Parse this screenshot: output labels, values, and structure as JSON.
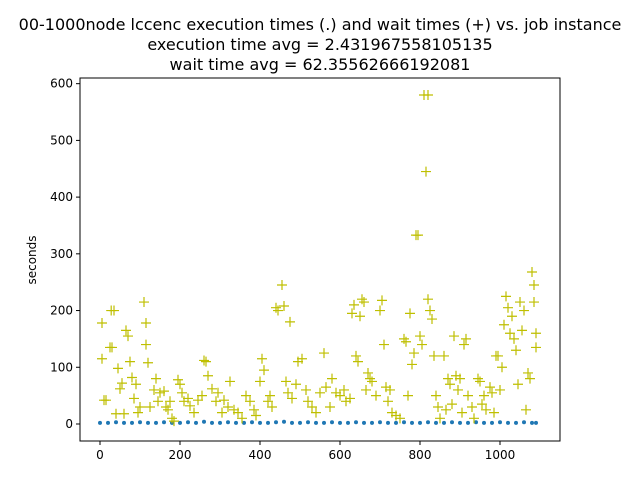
{
  "chart_data": {
    "type": "scatter",
    "title_lines": [
      "00-1000node lccenc execution times (.) and wait times (+) vs. job instance",
      "execution time avg = 2.431967558105135",
      "wait time avg = 62.35562666192081"
    ],
    "xlabel": "",
    "ylabel": "seconds",
    "xlim": [
      -50,
      1150
    ],
    "ylim": [
      -30,
      610
    ],
    "xticks": [
      0,
      200,
      400,
      600,
      800,
      1000
    ],
    "yticks": [
      0,
      100,
      200,
      300,
      400,
      500,
      600
    ],
    "grid": false,
    "series": [
      {
        "marker": "dot",
        "color": "#1f77b4",
        "points": [
          [
            0,
            2
          ],
          [
            20,
            2
          ],
          [
            40,
            3
          ],
          [
            60,
            2
          ],
          [
            80,
            2
          ],
          [
            100,
            3
          ],
          [
            120,
            2
          ],
          [
            140,
            2
          ],
          [
            160,
            3
          ],
          [
            180,
            2
          ],
          [
            200,
            2
          ],
          [
            220,
            3
          ],
          [
            240,
            2
          ],
          [
            260,
            4
          ],
          [
            280,
            2
          ],
          [
            300,
            2
          ],
          [
            320,
            3
          ],
          [
            340,
            2
          ],
          [
            360,
            2
          ],
          [
            380,
            3
          ],
          [
            400,
            2
          ],
          [
            420,
            2
          ],
          [
            440,
            3
          ],
          [
            460,
            4
          ],
          [
            480,
            2
          ],
          [
            500,
            2
          ],
          [
            520,
            3
          ],
          [
            540,
            2
          ],
          [
            560,
            2
          ],
          [
            580,
            3
          ],
          [
            600,
            2
          ],
          [
            620,
            2
          ],
          [
            640,
            3
          ],
          [
            660,
            2
          ],
          [
            680,
            2
          ],
          [
            700,
            3
          ],
          [
            720,
            2
          ],
          [
            740,
            2
          ],
          [
            760,
            3
          ],
          [
            780,
            2
          ],
          [
            800,
            2
          ],
          [
            820,
            3
          ],
          [
            840,
            2
          ],
          [
            860,
            2
          ],
          [
            880,
            3
          ],
          [
            900,
            2
          ],
          [
            920,
            2
          ],
          [
            940,
            3
          ],
          [
            960,
            2
          ],
          [
            980,
            2
          ],
          [
            1000,
            3
          ],
          [
            1020,
            2
          ],
          [
            1040,
            2
          ],
          [
            1060,
            3
          ],
          [
            1080,
            2
          ],
          [
            1090,
            2
          ]
        ]
      },
      {
        "marker": "plus",
        "color": "#bfbf00",
        "points": [
          [
            5,
            178
          ],
          [
            5,
            115
          ],
          [
            10,
            42
          ],
          [
            15,
            42
          ],
          [
            25,
            135
          ],
          [
            28,
            200
          ],
          [
            35,
            200
          ],
          [
            30,
            135
          ],
          [
            40,
            18
          ],
          [
            45,
            98
          ],
          [
            50,
            62
          ],
          [
            55,
            72
          ],
          [
            60,
            18
          ],
          [
            65,
            165
          ],
          [
            70,
            155
          ],
          [
            75,
            110
          ],
          [
            80,
            82
          ],
          [
            85,
            45
          ],
          [
            90,
            70
          ],
          [
            95,
            20
          ],
          [
            100,
            30
          ],
          [
            110,
            215
          ],
          [
            115,
            178
          ],
          [
            115,
            140
          ],
          [
            120,
            108
          ],
          [
            125,
            30
          ],
          [
            135,
            60
          ],
          [
            140,
            80
          ],
          [
            145,
            40
          ],
          [
            150,
            55
          ],
          [
            160,
            58
          ],
          [
            165,
            30
          ],
          [
            170,
            25
          ],
          [
            175,
            40
          ],
          [
            180,
            10
          ],
          [
            185,
            5
          ],
          [
            195,
            78
          ],
          [
            200,
            70
          ],
          [
            205,
            55
          ],
          [
            210,
            40
          ],
          [
            220,
            45
          ],
          [
            225,
            32
          ],
          [
            235,
            20
          ],
          [
            245,
            42
          ],
          [
            255,
            50
          ],
          [
            260,
            112
          ],
          [
            265,
            110
          ],
          [
            270,
            85
          ],
          [
            280,
            62
          ],
          [
            290,
            40
          ],
          [
            295,
            55
          ],
          [
            305,
            20
          ],
          [
            310,
            42
          ],
          [
            320,
            30
          ],
          [
            325,
            75
          ],
          [
            335,
            25
          ],
          [
            345,
            20
          ],
          [
            355,
            10
          ],
          [
            365,
            50
          ],
          [
            375,
            40
          ],
          [
            385,
            25
          ],
          [
            390,
            15
          ],
          [
            400,
            75
          ],
          [
            405,
            115
          ],
          [
            410,
            95
          ],
          [
            420,
            40
          ],
          [
            425,
            50
          ],
          [
            430,
            30
          ],
          [
            440,
            205
          ],
          [
            445,
            200
          ],
          [
            455,
            245
          ],
          [
            460,
            208
          ],
          [
            465,
            75
          ],
          [
            470,
            55
          ],
          [
            475,
            180
          ],
          [
            480,
            45
          ],
          [
            490,
            70
          ],
          [
            495,
            110
          ],
          [
            505,
            115
          ],
          [
            515,
            60
          ],
          [
            520,
            40
          ],
          [
            530,
            30
          ],
          [
            540,
            20
          ],
          [
            550,
            55
          ],
          [
            560,
            125
          ],
          [
            565,
            65
          ],
          [
            575,
            30
          ],
          [
            580,
            80
          ],
          [
            590,
            55
          ],
          [
            600,
            50
          ],
          [
            610,
            60
          ],
          [
            615,
            40
          ],
          [
            625,
            45
          ],
          [
            630,
            195
          ],
          [
            635,
            210
          ],
          [
            640,
            120
          ],
          [
            645,
            110
          ],
          [
            650,
            190
          ],
          [
            655,
            220
          ],
          [
            660,
            215
          ],
          [
            665,
            60
          ],
          [
            670,
            90
          ],
          [
            675,
            80
          ],
          [
            680,
            75
          ],
          [
            690,
            50
          ],
          [
            700,
            200
          ],
          [
            705,
            218
          ],
          [
            710,
            140
          ],
          [
            715,
            65
          ],
          [
            720,
            40
          ],
          [
            725,
            60
          ],
          [
            730,
            20
          ],
          [
            740,
            15
          ],
          [
            750,
            10
          ],
          [
            760,
            150
          ],
          [
            765,
            145
          ],
          [
            770,
            50
          ],
          [
            775,
            195
          ],
          [
            780,
            105
          ],
          [
            785,
            125
          ],
          [
            790,
            333
          ],
          [
            795,
            333
          ],
          [
            800,
            155
          ],
          [
            805,
            140
          ],
          [
            810,
            580
          ],
          [
            815,
            445
          ],
          [
            820,
            580
          ],
          [
            820,
            220
          ],
          [
            825,
            200
          ],
          [
            830,
            185
          ],
          [
            835,
            120
          ],
          [
            840,
            50
          ],
          [
            845,
            30
          ],
          [
            850,
            10
          ],
          [
            860,
            120
          ],
          [
            865,
            25
          ],
          [
            870,
            80
          ],
          [
            875,
            70
          ],
          [
            880,
            35
          ],
          [
            885,
            155
          ],
          [
            890,
            85
          ],
          [
            895,
            60
          ],
          [
            900,
            80
          ],
          [
            905,
            20
          ],
          [
            910,
            140
          ],
          [
            915,
            150
          ],
          [
            920,
            50
          ],
          [
            930,
            30
          ],
          [
            935,
            10
          ],
          [
            945,
            80
          ],
          [
            950,
            75
          ],
          [
            955,
            35
          ],
          [
            960,
            50
          ],
          [
            965,
            25
          ],
          [
            975,
            65
          ],
          [
            980,
            55
          ],
          [
            985,
            20
          ],
          [
            990,
            120
          ],
          [
            995,
            120
          ],
          [
            1000,
            60
          ],
          [
            1005,
            100
          ],
          [
            1010,
            175
          ],
          [
            1015,
            225
          ],
          [
            1020,
            205
          ],
          [
            1025,
            160
          ],
          [
            1030,
            190
          ],
          [
            1035,
            150
          ],
          [
            1040,
            130
          ],
          [
            1045,
            70
          ],
          [
            1050,
            215
          ],
          [
            1055,
            165
          ],
          [
            1060,
            200
          ],
          [
            1065,
            25
          ],
          [
            1070,
            90
          ],
          [
            1075,
            80
          ],
          [
            1080,
            268
          ],
          [
            1085,
            245
          ],
          [
            1085,
            215
          ],
          [
            1090,
            160
          ],
          [
            1090,
            135
          ]
        ]
      }
    ]
  }
}
